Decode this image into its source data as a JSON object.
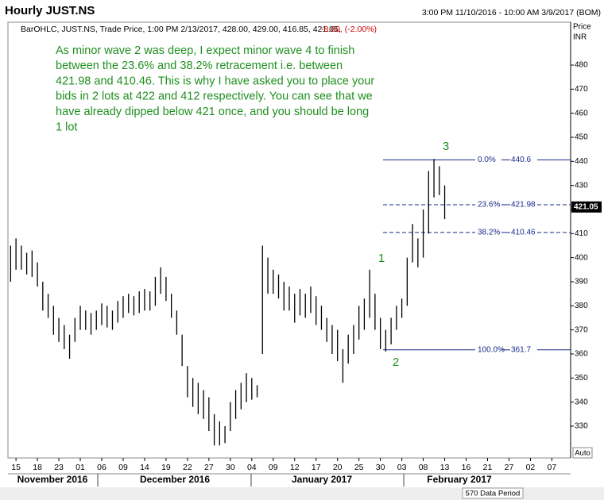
{
  "header": {
    "title": "Hourly JUST.NS",
    "range": "3:00 PM 11/10/2016 - 10:00 AM 3/9/2017 (BOM)"
  },
  "chart_data": {
    "type": "ohlc",
    "info": "BarOHLC, JUST.NS, Trade Price, 1:00 PM 2/13/2017, 428.00, 429.00, 416.85, 421.05,",
    "change": "-8.60, (-2.00%)",
    "annotation": [
      "As minor wave 2 was deep, I expect minor wave 4 to finish",
      "between the 23.6% and 38.2% retracement i.e. between",
      "421.98 and 410.46. This is why I have asked you to place your",
      "bids in 2 lots at 422 and 412 respectively. You can see that we",
      "have already dipped below 421 once, and you should be long",
      "1 lot"
    ],
    "waves": [
      "1",
      "2",
      "3"
    ],
    "y_axis_label": [
      "Price",
      "INR"
    ],
    "auto_label": "Auto",
    "data_period": "570 Data Period",
    "months": [
      "November 2016",
      "December 2016",
      "January 2017",
      "February 2017"
    ],
    "categories": [
      null,
      "15",
      null,
      null,
      null,
      "18",
      null,
      null,
      null,
      "23",
      null,
      null,
      null,
      "01",
      null,
      null,
      null,
      "06",
      null,
      null,
      null,
      "09",
      null,
      null,
      null,
      "14",
      null,
      null,
      null,
      "19",
      null,
      null,
      null,
      "22",
      null,
      null,
      null,
      "27",
      null,
      null,
      null,
      "30",
      null,
      null,
      null,
      "04",
      null,
      null,
      null,
      "09",
      null,
      null,
      null,
      "12",
      null,
      null,
      null,
      "17",
      null,
      null,
      null,
      "20",
      null,
      null,
      null,
      "25",
      null,
      null,
      null,
      "30",
      null,
      null,
      null,
      "03",
      null,
      null,
      null,
      "08",
      null,
      null,
      null,
      "13",
      null,
      null,
      null,
      "16",
      null,
      null,
      null,
      "21",
      null,
      null,
      null,
      "27",
      null,
      null,
      null,
      "02",
      null,
      null,
      null,
      "07",
      null,
      null,
      null
    ],
    "high": [
      405,
      408,
      405,
      402,
      403,
      398,
      390,
      385,
      380,
      375,
      372,
      368,
      375,
      380,
      378,
      377,
      378,
      381,
      380,
      378,
      382,
      384,
      385,
      384,
      386,
      387,
      386,
      392,
      396,
      392,
      385,
      378,
      368,
      355,
      350,
      348,
      345,
      342,
      335,
      332,
      330,
      340,
      345,
      348,
      352,
      350,
      347,
      405,
      400,
      395,
      393,
      390,
      388,
      385,
      387,
      385,
      388,
      384,
      380,
      375,
      372,
      370,
      362,
      368,
      372,
      380,
      383,
      395,
      385,
      375,
      370,
      375,
      380,
      383,
      400,
      414,
      408,
      420,
      436,
      441,
      438,
      430,
      null,
      null,
      null,
      null,
      null,
      null,
      null,
      null,
      null,
      null,
      null,
      null,
      null,
      null,
      null,
      null,
      null,
      null,
      null,
      null,
      null,
      null,
      null
    ],
    "low": [
      390,
      395,
      395,
      393,
      392,
      388,
      378,
      375,
      368,
      365,
      362,
      358,
      365,
      370,
      370,
      368,
      370,
      372,
      371,
      370,
      373,
      375,
      377,
      376,
      377,
      378,
      378,
      380,
      385,
      382,
      375,
      368,
      355,
      342,
      338,
      335,
      333,
      328,
      322,
      322,
      323,
      328,
      333,
      337,
      340,
      341,
      342,
      360,
      385,
      385,
      383,
      378,
      378,
      373,
      376,
      375,
      377,
      372,
      370,
      365,
      360,
      357,
      348,
      356,
      360,
      366,
      370,
      375,
      370,
      362,
      361,
      364,
      370,
      375,
      380,
      398,
      396,
      400,
      410,
      425,
      426,
      416,
      null,
      null,
      null,
      null,
      null,
      null,
      null,
      null,
      null,
      null,
      null,
      null,
      null,
      null,
      null,
      null,
      null,
      null,
      null,
      null,
      null,
      null,
      null
    ],
    "color": "#000000",
    "ylim": [
      316.8,
      497.8
    ],
    "yticks": [
      330,
      340,
      350,
      360,
      370,
      380,
      390,
      400,
      410,
      420,
      430,
      440,
      450,
      460,
      470,
      480
    ],
    "fib_levels": [
      {
        "label": "0.0%",
        "value": 440.6,
        "dashed": false
      },
      {
        "label": "23.6%",
        "value": 421.98,
        "dashed": true
      },
      {
        "label": "38.2%",
        "value": 410.46,
        "dashed": true
      },
      {
        "label": "100.0%",
        "value": 361.7,
        "dashed": false
      }
    ],
    "fib_color": "#1a2a8a",
    "last_price": 421.05
  }
}
